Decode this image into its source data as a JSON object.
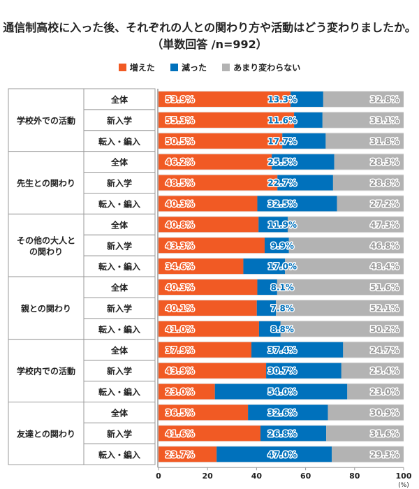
{
  "chart_data": {
    "type": "bar",
    "orientation": "horizontal",
    "stacked": true,
    "title": "通信制高校に入った後、それぞれの人との関わり方や活動はどう変わりましたか。（単数回答 /n=992）",
    "legend_position": "top",
    "xlim": [
      0,
      100
    ],
    "xticks": [
      "0",
      "20",
      "40",
      "60",
      "80",
      "100"
    ],
    "xunit": "(%)",
    "series": [
      {
        "name": "増えた",
        "color": "#F15A24"
      },
      {
        "name": "減った",
        "color": "#0071BC"
      },
      {
        "name": "あまり変わらない",
        "color": "#B3B3B3"
      }
    ],
    "groups": [
      {
        "name": "学校外での活動",
        "rows": [
          {
            "label": "全体",
            "values": [
              53.9,
              13.3,
              32.8
            ]
          },
          {
            "label": "新入学",
            "values": [
              55.3,
              11.6,
              33.1
            ]
          },
          {
            "label": "転入・編入",
            "values": [
              50.5,
              17.7,
              31.8
            ]
          }
        ]
      },
      {
        "name": "先生との関わり",
        "rows": [
          {
            "label": "全体",
            "values": [
              46.2,
              25.5,
              28.3
            ]
          },
          {
            "label": "新入学",
            "values": [
              48.5,
              22.7,
              28.8
            ]
          },
          {
            "label": "転入・編入",
            "values": [
              40.3,
              32.5,
              27.2
            ]
          }
        ]
      },
      {
        "name": "その他の大人との関わり",
        "lines": [
          "その他の大人と",
          "の関わり"
        ],
        "rows": [
          {
            "label": "全体",
            "values": [
              40.8,
              11.9,
              47.3
            ]
          },
          {
            "label": "新入学",
            "values": [
              43.3,
              9.9,
              46.8
            ]
          },
          {
            "label": "転入・編入",
            "values": [
              34.6,
              17.0,
              48.4
            ]
          }
        ]
      },
      {
        "name": "親との関わり",
        "rows": [
          {
            "label": "全体",
            "values": [
              40.3,
              8.1,
              51.6
            ]
          },
          {
            "label": "新入学",
            "values": [
              40.1,
              7.8,
              52.1
            ]
          },
          {
            "label": "転入・編入",
            "values": [
              41.0,
              8.8,
              50.2
            ]
          }
        ]
      },
      {
        "name": "学校内での活動",
        "rows": [
          {
            "label": "全体",
            "values": [
              37.9,
              37.4,
              24.7
            ]
          },
          {
            "label": "新入学",
            "values": [
              43.9,
              30.7,
              25.4
            ]
          },
          {
            "label": "転入・編入",
            "values": [
              23.0,
              54.0,
              23.0
            ]
          }
        ]
      },
      {
        "name": "友達との関わり",
        "rows": [
          {
            "label": "全体",
            "values": [
              36.5,
              32.6,
              30.9
            ]
          },
          {
            "label": "新入学",
            "values": [
              41.6,
              26.8,
              31.6
            ]
          },
          {
            "label": "転入・編入",
            "values": [
              23.7,
              47.0,
              29.3
            ]
          }
        ]
      }
    ]
  }
}
